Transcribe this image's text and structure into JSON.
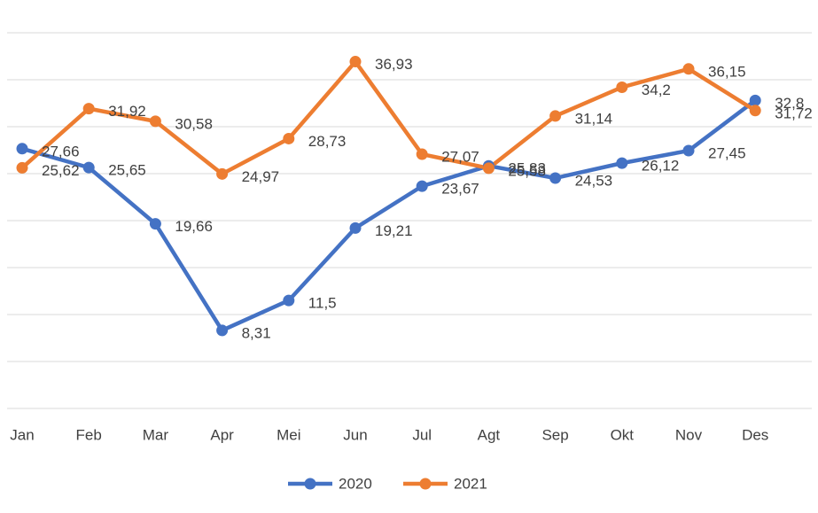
{
  "chart_data": {
    "type": "line",
    "categories": [
      "Jan",
      "Feb",
      "Mar",
      "Apr",
      "Mei",
      "Jun",
      "Jul",
      "Agt",
      "Sep",
      "Okt",
      "Nov",
      "Des"
    ],
    "series": [
      {
        "name": "2020",
        "color": "#4472c4",
        "values": [
          27.66,
          25.65,
          19.66,
          8.31,
          11.5,
          19.21,
          23.67,
          25.83,
          24.53,
          26.12,
          27.45,
          32.8
        ],
        "value_labels": [
          "27,66",
          "25,65",
          "19,66",
          "8,31",
          "11,5",
          "19,21",
          "23,67",
          "25,83",
          "24,53",
          "26,12",
          "27,45",
          "32,8"
        ]
      },
      {
        "name": "2021",
        "color": "#ed7d31",
        "values": [
          25.62,
          31.92,
          30.58,
          24.97,
          28.73,
          36.93,
          27.07,
          25.58,
          31.14,
          34.2,
          36.15,
          31.72
        ],
        "value_labels": [
          "25,62",
          "31,92",
          "30,58",
          "24,97",
          "28,73",
          "36,93",
          "27,07",
          "25,58",
          "31,14",
          "34,2",
          "36,15",
          "31,72"
        ]
      }
    ],
    "ylim": [
      0,
      40
    ],
    "yticks": [
      0,
      5,
      10,
      15,
      20,
      25,
      30,
      35,
      40
    ],
    "grid": true,
    "legend": "bottom"
  }
}
